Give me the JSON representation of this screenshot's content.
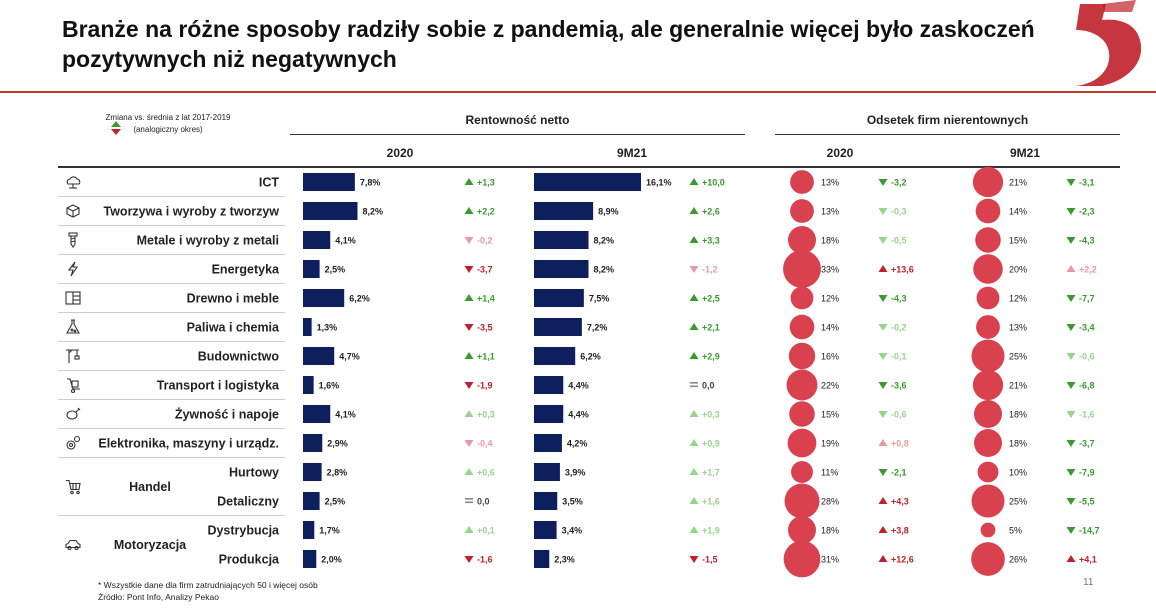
{
  "title": "Branże na różne sposoby radziły sobie z pandemią, ale generalnie więcej było zaskoczeń pozytywnych niż negatywnych",
  "legend_note": "Zmiana vs. średnia z lat 2017-2019 (analogiczny okres)",
  "groups": {
    "rent": "Rentowność netto",
    "odsetek": "Odsetek firm nierentownych"
  },
  "periods": [
    "2020",
    "9M21",
    "2020",
    "9M21"
  ],
  "footnote": "* Wszystkie dane dla firm zatrudniających 50 i więcej osób",
  "source": "Źródło: Pont Info, Analizy Pekao",
  "page_number": "11",
  "colors": {
    "bar": "#0d1f5c",
    "bubble": "#d9414e",
    "up": "#3a9a2f",
    "up_light": "#98d48e",
    "down": "#c0202a",
    "down_light": "#e99aa0",
    "neutral": "#888888",
    "accent": "#c0392b"
  },
  "chart_data": {
    "type": "table",
    "columns": [
      "Rentowność netto 2020",
      "Rentowność netto 9M21",
      "Odsetek firm nierentownych 2020",
      "Odsetek firm nierentownych 9M21"
    ],
    "rows": [
      {
        "label": "ICT",
        "group": "",
        "icon": "cloud-icon",
        "r2020": 7.8,
        "r2020_label": "7,8%",
        "r2020_chg": "+1,3",
        "r2020_dir": "up",
        "r2020_strong": true,
        "r9m": 16.1,
        "r9m_label": "16,1%",
        "r9m_chg": "+10,0",
        "r9m_dir": "up",
        "r9m_strong": true,
        "o2020": 13,
        "o2020_label": "13%",
        "o2020_chg": "-3,2",
        "o2020_dir": "down-good",
        "o2020_strong": true,
        "o9m": 21,
        "o9m_label": "21%",
        "o9m_chg": "-3,1",
        "o9m_dir": "down-good",
        "o9m_strong": true
      },
      {
        "label": "Tworzywa i wyroby z tworzyw",
        "group": "",
        "icon": "cube-icon",
        "r2020": 8.2,
        "r2020_label": "8,2%",
        "r2020_chg": "+2,2",
        "r2020_dir": "up",
        "r2020_strong": true,
        "r9m": 8.9,
        "r9m_label": "8,9%",
        "r9m_chg": "+2,6",
        "r9m_dir": "up",
        "r9m_strong": true,
        "o2020": 13,
        "o2020_label": "13%",
        "o2020_chg": "-0,3",
        "o2020_dir": "down-good",
        "o2020_strong": false,
        "o9m": 14,
        "o9m_label": "14%",
        "o9m_chg": "-2,3",
        "o9m_dir": "down-good",
        "o9m_strong": true
      },
      {
        "label": "Metale i wyroby z metali",
        "group": "",
        "icon": "screw-icon",
        "r2020": 4.1,
        "r2020_label": "4,1%",
        "r2020_chg": "-0,2",
        "r2020_dir": "down",
        "r2020_strong": false,
        "r9m": 8.2,
        "r9m_label": "8,2%",
        "r9m_chg": "+3,3",
        "r9m_dir": "up",
        "r9m_strong": true,
        "o2020": 18,
        "o2020_label": "18%",
        "o2020_chg": "-0,5",
        "o2020_dir": "down-good",
        "o2020_strong": false,
        "o9m": 15,
        "o9m_label": "15%",
        "o9m_chg": "-4,3",
        "o9m_dir": "down-good",
        "o9m_strong": true
      },
      {
        "label": "Energetyka",
        "group": "",
        "icon": "lightning-icon",
        "r2020": 2.5,
        "r2020_label": "2,5%",
        "r2020_chg": "-3,7",
        "r2020_dir": "down",
        "r2020_strong": true,
        "r9m": 8.2,
        "r9m_label": "8,2%",
        "r9m_chg": "-1,2",
        "r9m_dir": "down",
        "r9m_strong": false,
        "o2020": 33,
        "o2020_label": "33%",
        "o2020_chg": "+13,6",
        "o2020_dir": "up-bad",
        "o2020_strong": true,
        "o9m": 20,
        "o9m_label": "20%",
        "o9m_chg": "+2,2",
        "o9m_dir": "up-bad",
        "o9m_strong": false
      },
      {
        "label": "Drewno i meble",
        "group": "",
        "icon": "cabinet-icon",
        "r2020": 6.2,
        "r2020_label": "6,2%",
        "r2020_chg": "+1,4",
        "r2020_dir": "up",
        "r2020_strong": true,
        "r9m": 7.5,
        "r9m_label": "7,5%",
        "r9m_chg": "+2,5",
        "r9m_dir": "up",
        "r9m_strong": true,
        "o2020": 12,
        "o2020_label": "12%",
        "o2020_chg": "-4,3",
        "o2020_dir": "down-good",
        "o2020_strong": true,
        "o9m": 12,
        "o9m_label": "12%",
        "o9m_chg": "-7,7",
        "o9m_dir": "down-good",
        "o9m_strong": true
      },
      {
        "label": "Paliwa i chemia",
        "group": "",
        "icon": "flask-icon",
        "r2020": 1.3,
        "r2020_label": "1,3%",
        "r2020_chg": "-3,5",
        "r2020_dir": "down",
        "r2020_strong": true,
        "r9m": 7.2,
        "r9m_label": "7,2%",
        "r9m_chg": "+2,1",
        "r9m_dir": "up",
        "r9m_strong": true,
        "o2020": 14,
        "o2020_label": "14%",
        "o2020_chg": "-0,2",
        "o2020_dir": "down-good",
        "o2020_strong": false,
        "o9m": 13,
        "o9m_label": "13%",
        "o9m_chg": "-3,4",
        "o9m_dir": "down-good",
        "o9m_strong": true
      },
      {
        "label": "Budownictwo",
        "group": "",
        "icon": "crane-icon",
        "r2020": 4.7,
        "r2020_label": "4,7%",
        "r2020_chg": "+1,1",
        "r2020_dir": "up",
        "r2020_strong": true,
        "r9m": 6.2,
        "r9m_label": "6,2%",
        "r9m_chg": "+2,9",
        "r9m_dir": "up",
        "r9m_strong": true,
        "o2020": 16,
        "o2020_label": "16%",
        "o2020_chg": "-0,1",
        "o2020_dir": "down-good",
        "o2020_strong": false,
        "o9m": 25,
        "o9m_label": "25%",
        "o9m_chg": "-0,6",
        "o9m_dir": "down-good",
        "o9m_strong": false
      },
      {
        "label": "Transport i logistyka",
        "group": "",
        "icon": "hand-truck-icon",
        "r2020": 1.6,
        "r2020_label": "1,6%",
        "r2020_chg": "-1,9",
        "r2020_dir": "down",
        "r2020_strong": true,
        "r9m": 4.4,
        "r9m_label": "4,4%",
        "r9m_chg": "0,0",
        "r9m_dir": "flat",
        "r9m_strong": true,
        "o2020": 22,
        "o2020_label": "22%",
        "o2020_chg": "-3,6",
        "o2020_dir": "down-good",
        "o2020_strong": true,
        "o9m": 21,
        "o9m_label": "21%",
        "o9m_chg": "-6,8",
        "o9m_dir": "down-good",
        "o9m_strong": true
      },
      {
        "label": "Żywność i napoje",
        "group": "",
        "icon": "chicken-leg-icon",
        "r2020": 4.1,
        "r2020_label": "4,1%",
        "r2020_chg": "+0,3",
        "r2020_dir": "up",
        "r2020_strong": false,
        "r9m": 4.4,
        "r9m_label": "4,4%",
        "r9m_chg": "+0,3",
        "r9m_dir": "up",
        "r9m_strong": false,
        "o2020": 15,
        "o2020_label": "15%",
        "o2020_chg": "-0,6",
        "o2020_dir": "down-good",
        "o2020_strong": false,
        "o9m": 18,
        "o9m_label": "18%",
        "o9m_chg": "-1,6",
        "o9m_dir": "down-good",
        "o9m_strong": false
      },
      {
        "label": "Elektronika, maszyny i urządz.",
        "group": "",
        "icon": "gears-icon",
        "r2020": 2.9,
        "r2020_label": "2,9%",
        "r2020_chg": "-0,4",
        "r2020_dir": "down",
        "r2020_strong": false,
        "r9m": 4.2,
        "r9m_label": "4,2%",
        "r9m_chg": "+0,9",
        "r9m_dir": "up",
        "r9m_strong": false,
        "o2020": 19,
        "o2020_label": "19%",
        "o2020_chg": "+0,8",
        "o2020_dir": "up-bad",
        "o2020_strong": false,
        "o9m": 18,
        "o9m_label": "18%",
        "o9m_chg": "-3,7",
        "o9m_dir": "down-good",
        "o9m_strong": true
      },
      {
        "label": "Hurtowy",
        "group": "Handel",
        "icon": "cart-icon",
        "r2020": 2.8,
        "r2020_label": "2,8%",
        "r2020_chg": "+0,6",
        "r2020_dir": "up",
        "r2020_strong": false,
        "r9m": 3.9,
        "r9m_label": "3,9%",
        "r9m_chg": "+1,7",
        "r9m_dir": "up",
        "r9m_strong": false,
        "o2020": 11,
        "o2020_label": "11%",
        "o2020_chg": "-2,1",
        "o2020_dir": "down-good",
        "o2020_strong": true,
        "o9m": 10,
        "o9m_label": "10%",
        "o9m_chg": "-7,9",
        "o9m_dir": "down-good",
        "o9m_strong": true
      },
      {
        "label": "Detaliczny",
        "group": "Handel",
        "icon": "",
        "r2020": 2.5,
        "r2020_label": "2,5%",
        "r2020_chg": "0,0",
        "r2020_dir": "flat",
        "r2020_strong": false,
        "r9m": 3.5,
        "r9m_label": "3,5%",
        "r9m_chg": "+1,6",
        "r9m_dir": "up",
        "r9m_strong": false,
        "o2020": 28,
        "o2020_label": "28%",
        "o2020_chg": "+4,3",
        "o2020_dir": "up-bad",
        "o2020_strong": true,
        "o9m": 25,
        "o9m_label": "25%",
        "o9m_chg": "-5,5",
        "o9m_dir": "down-good",
        "o9m_strong": true
      },
      {
        "label": "Dystrybucja",
        "group": "Motoryzacja",
        "icon": "car-icon",
        "r2020": 1.7,
        "r2020_label": "1,7%",
        "r2020_chg": "+0,1",
        "r2020_dir": "up",
        "r2020_strong": false,
        "r9m": 3.4,
        "r9m_label": "3,4%",
        "r9m_chg": "+1,9",
        "r9m_dir": "up",
        "r9m_strong": false,
        "o2020": 18,
        "o2020_label": "18%",
        "o2020_chg": "+3,8",
        "o2020_dir": "up-bad",
        "o2020_strong": true,
        "o9m": 5,
        "o9m_label": "5%",
        "o9m_chg": "-14,7",
        "o9m_dir": "down-good",
        "o9m_strong": true
      },
      {
        "label": "Produkcja",
        "group": "Motoryzacja",
        "icon": "",
        "r2020": 2.0,
        "r2020_label": "2,0%",
        "r2020_chg": "-1,6",
        "r2020_dir": "down",
        "r2020_strong": true,
        "r9m": 2.3,
        "r9m_label": "2,3%",
        "r9m_chg": "-1,5",
        "r9m_dir": "down",
        "r9m_strong": true,
        "o2020": 31,
        "o2020_label": "31%",
        "o2020_chg": "+12,6",
        "o2020_dir": "up-bad",
        "o2020_strong": true,
        "o9m": 26,
        "o9m_label": "26%",
        "o9m_chg": "+4,1",
        "o9m_dir": "up-bad",
        "o9m_strong": true
      }
    ]
  }
}
